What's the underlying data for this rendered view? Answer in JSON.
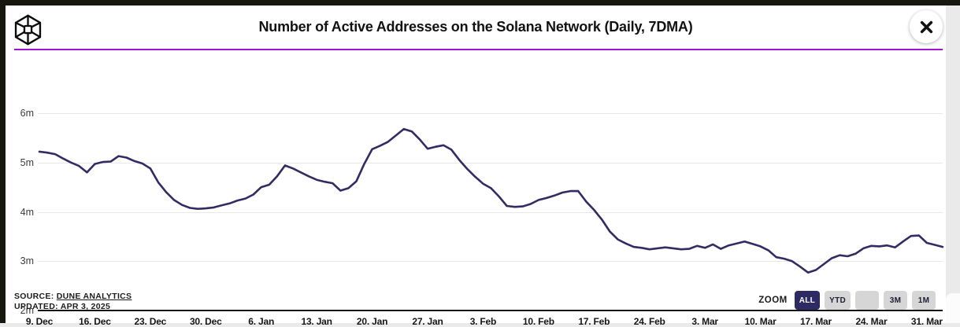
{
  "header": {
    "title": "Number of Active Addresses on the Solana Network (Daily, 7DMA)",
    "logo_icon": "isometric-cube-logo",
    "close_icon": "x-close"
  },
  "chart_data": {
    "type": "line",
    "title": "Number of Active Addresses on the Solana Network (Daily, 7DMA)",
    "x_start": "2024-12-09",
    "x_end": "2025-04-02",
    "frequency": "daily",
    "unit": "millions of active addresses",
    "ylim": [
      2,
      6
    ],
    "y_tick_labels": [
      "6m",
      "5m",
      "4m",
      "3m",
      "2m"
    ],
    "y_tick_values": [
      6,
      5,
      4,
      3,
      2
    ],
    "x_tick_labels": [
      "9. Dec",
      "16. Dec",
      "23. Dec",
      "30. Dec",
      "6. Jan",
      "13. Jan",
      "20. Jan",
      "27. Jan",
      "3. Feb",
      "10. Feb",
      "17. Feb",
      "24. Feb",
      "3. Mar",
      "10. Mar",
      "17. Mar",
      "24. Mar",
      "31. Mar"
    ],
    "grid": true,
    "legend": "none",
    "line_color": "#322c63",
    "values": [
      5.22,
      5.2,
      5.17,
      5.08,
      5.0,
      4.93,
      4.8,
      4.97,
      5.01,
      5.02,
      5.13,
      5.1,
      5.03,
      4.98,
      4.88,
      4.6,
      4.4,
      4.24,
      4.14,
      4.08,
      4.06,
      4.07,
      4.09,
      4.13,
      4.17,
      4.23,
      4.27,
      4.35,
      4.5,
      4.55,
      4.72,
      4.94,
      4.88,
      4.8,
      4.72,
      4.65,
      4.61,
      4.58,
      4.43,
      4.48,
      4.62,
      4.97,
      5.27,
      5.34,
      5.42,
      5.55,
      5.68,
      5.63,
      5.47,
      5.28,
      5.32,
      5.35,
      5.26,
      5.05,
      4.87,
      4.71,
      4.57,
      4.48,
      4.31,
      4.12,
      4.1,
      4.11,
      4.16,
      4.24,
      4.28,
      4.33,
      4.39,
      4.42,
      4.42,
      4.21,
      4.04,
      3.84,
      3.6,
      3.44,
      3.36,
      3.29,
      3.27,
      3.24,
      3.26,
      3.28,
      3.26,
      3.24,
      3.25,
      3.31,
      3.27,
      3.34,
      3.25,
      3.32,
      3.36,
      3.4,
      3.35,
      3.3,
      3.22,
      3.08,
      3.05,
      3.0,
      2.89,
      2.77,
      2.82,
      2.94,
      3.06,
      3.12,
      3.1,
      3.15,
      3.26,
      3.31,
      3.3,
      3.32,
      3.28,
      3.4,
      3.51,
      3.52,
      3.37,
      3.33,
      3.29
    ]
  },
  "footer": {
    "source_label": "SOURCE:",
    "source_link": "DUNE ANALYTICS",
    "updated": "UPDATED: APR 3, 2025",
    "zoom_label": "ZOOM",
    "zoom_buttons": [
      {
        "label": "ALL",
        "active": true
      },
      {
        "label": "YTD",
        "active": false
      },
      {
        "label": "",
        "active": false
      },
      {
        "label": "3M",
        "active": false
      },
      {
        "label": "1M",
        "active": false
      }
    ]
  },
  "colors": {
    "frame_border": "#17170f",
    "card_bg": "#ffffff",
    "divider_purple": "#a213d8",
    "line": "#322c63",
    "gridline": "#e8e8e8",
    "axis": "#151515",
    "active_button_bg": "#2e2a63",
    "inactive_button_bg": "#d6d6d6",
    "page_bg": "#eaeaea"
  }
}
